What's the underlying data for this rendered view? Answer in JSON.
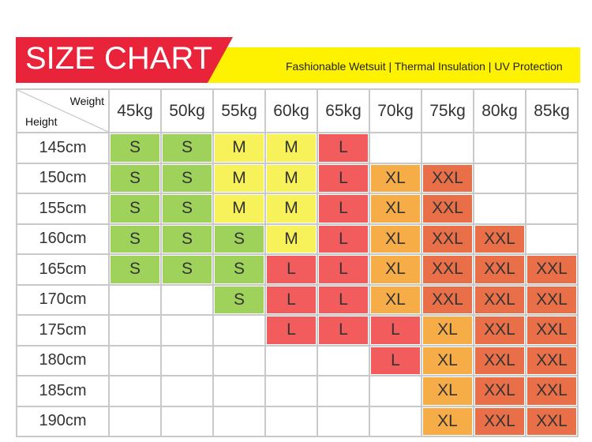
{
  "header": {
    "title": "SIZE CHART",
    "subtitle": "Fashionable Wetsuit | Thermal Insulation | UV Protection"
  },
  "table": {
    "corner": {
      "column_label": "Weight",
      "row_label": "Height"
    },
    "columns": [
      "45kg",
      "50kg",
      "55kg",
      "60kg",
      "65kg",
      "70kg",
      "75kg",
      "80kg",
      "85kg"
    ],
    "size_colors": {
      "S": "#9ed25a",
      "M": "#f8f25a",
      "L": "#f25c5c",
      "XL": "#f6ad48",
      "XXL": "#e86f48"
    },
    "rows": [
      {
        "label": "145cm",
        "cells": [
          "S",
          "S",
          "M",
          "M",
          "L",
          null,
          null,
          null,
          null
        ]
      },
      {
        "label": "150cm",
        "cells": [
          "S",
          "S",
          "M",
          "M",
          "L",
          "XL",
          "XXL",
          null,
          null
        ]
      },
      {
        "label": "155cm",
        "cells": [
          "S",
          "S",
          "M",
          "M",
          "L",
          "XL",
          "XXL",
          null,
          null
        ]
      },
      {
        "label": "160cm",
        "cells": [
          "S",
          "S",
          "S",
          "M",
          "L",
          "XL",
          "XXL",
          "XXL",
          null
        ]
      },
      {
        "label": "165cm",
        "cells": [
          "S",
          "S",
          "S",
          "L",
          "L",
          "XL",
          "XXL",
          "XXL",
          "XXL"
        ]
      },
      {
        "label": "170cm",
        "cells": [
          null,
          null,
          "S",
          "L",
          "L",
          "XL",
          "XXL",
          "XXL",
          "XXL"
        ]
      },
      {
        "label": "175cm",
        "cells": [
          null,
          null,
          null,
          "L",
          "L",
          "L",
          "XL",
          "XXL",
          "XXL"
        ]
      },
      {
        "label": "180cm",
        "cells": [
          null,
          null,
          null,
          null,
          null,
          "L",
          "XL",
          "XXL",
          "XXL"
        ]
      },
      {
        "label": "185cm",
        "cells": [
          null,
          null,
          null,
          null,
          null,
          null,
          "XL",
          "XXL",
          "XXL"
        ]
      },
      {
        "label": "190cm",
        "cells": [
          null,
          null,
          null,
          null,
          null,
          null,
          "XL",
          "XXL",
          "XXL"
        ]
      }
    ]
  }
}
